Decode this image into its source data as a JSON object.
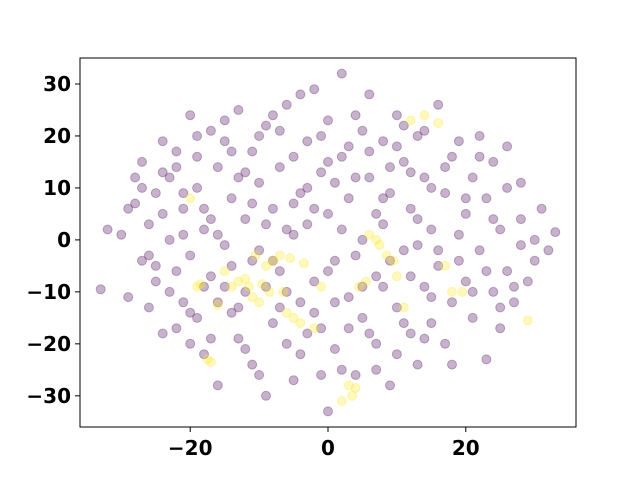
{
  "chart_data": {
    "type": "scatter",
    "title": "",
    "xlabel": "",
    "ylabel": "",
    "xlim": [
      -36,
      36
    ],
    "ylim": [
      -36,
      35
    ],
    "x_ticks": [
      -20,
      0,
      20
    ],
    "x_tick_labels": [
      "−20",
      "0",
      "20"
    ],
    "y_ticks": [
      -30,
      -20,
      -10,
      0,
      10,
      20,
      30
    ],
    "y_tick_labels": [
      "−30",
      "−20",
      "−10",
      "0",
      "10",
      "20",
      "30"
    ],
    "grid": false,
    "legend": "none",
    "marker_alpha": 0.3,
    "colors": {
      "class_0": "#440154",
      "class_1": "#fde725"
    },
    "series": [
      {
        "color_key": "class_0",
        "points": [
          [
            -33,
            -9.5
          ],
          [
            -32,
            2
          ],
          [
            -30,
            1
          ],
          [
            -29,
            -11
          ],
          [
            -28,
            7
          ],
          [
            -28,
            12
          ],
          [
            -27,
            -4
          ],
          [
            -27,
            15
          ],
          [
            -26,
            -13
          ],
          [
            -26,
            3
          ],
          [
            -25,
            -8
          ],
          [
            -25,
            9
          ],
          [
            -24,
            19
          ],
          [
            -24,
            -18
          ],
          [
            -23,
            0
          ],
          [
            -23,
            12
          ],
          [
            -22,
            -6
          ],
          [
            -22,
            17
          ],
          [
            -21,
            -12
          ],
          [
            -21,
            6
          ],
          [
            -20,
            -3
          ],
          [
            -20,
            24
          ],
          [
            -19,
            -15
          ],
          [
            -19,
            10
          ],
          [
            -18,
            -22
          ],
          [
            -18,
            2
          ],
          [
            -17,
            21
          ],
          [
            -17,
            -7
          ],
          [
            -16,
            14
          ],
          [
            -16,
            -28
          ],
          [
            -15,
            -1
          ],
          [
            -15,
            19
          ],
          [
            -14,
            -14
          ],
          [
            -14,
            8
          ],
          [
            -13,
            25
          ],
          [
            -13,
            -19
          ],
          [
            -12,
            4
          ],
          [
            -12,
            -10
          ],
          [
            -11,
            17
          ],
          [
            -11,
            -24
          ],
          [
            -10,
            11
          ],
          [
            -10,
            -2
          ],
          [
            -9,
            -30
          ],
          [
            -9,
            22
          ],
          [
            -8,
            6
          ],
          [
            -8,
            -16
          ],
          [
            -7,
            14
          ],
          [
            -7,
            -6
          ],
          [
            -6,
            26
          ],
          [
            -6,
            -20
          ],
          [
            -5,
            1
          ],
          [
            -5,
            -27
          ],
          [
            -4,
            9
          ],
          [
            -4,
            -12
          ],
          [
            -3,
            19
          ],
          [
            -3,
            3
          ],
          [
            -2,
            -8
          ],
          [
            -2,
            29
          ],
          [
            -1,
            -17
          ],
          [
            -1,
            13
          ],
          [
            0,
            -33
          ],
          [
            0,
            5
          ],
          [
            0,
            23
          ],
          [
            1,
            -4
          ],
          [
            1,
            -21
          ],
          [
            2,
            16
          ],
          [
            2,
            32
          ],
          [
            3,
            -11
          ],
          [
            3,
            8
          ],
          [
            4,
            -26
          ],
          [
            4,
            24
          ],
          [
            5,
            0
          ],
          [
            5,
            -15
          ],
          [
            6,
            12
          ],
          [
            6,
            28
          ],
          [
            7,
            -7
          ],
          [
            7,
            -20
          ],
          [
            8,
            19
          ],
          [
            8,
            3
          ],
          [
            9,
            -28
          ],
          [
            9,
            9
          ],
          [
            10,
            -13
          ],
          [
            10,
            24
          ],
          [
            11,
            -2
          ],
          [
            11,
            15
          ],
          [
            12,
            -18
          ],
          [
            12,
            6
          ],
          [
            13,
            -24
          ],
          [
            13,
            20
          ],
          [
            14,
            -9
          ],
          [
            14,
            12
          ],
          [
            15,
            2
          ],
          [
            15,
            -16
          ],
          [
            16,
            26
          ],
          [
            16,
            -5
          ],
          [
            17,
            9
          ],
          [
            17,
            -20
          ],
          [
            18,
            16
          ],
          [
            18,
            -12
          ],
          [
            19,
            1
          ],
          [
            19,
            19
          ],
          [
            20,
            -8
          ],
          [
            20,
            5
          ],
          [
            21,
            -15
          ],
          [
            21,
            12
          ],
          [
            22,
            -2
          ],
          [
            22,
            20
          ],
          [
            23,
            -23
          ],
          [
            23,
            8
          ],
          [
            24,
            -10
          ],
          [
            24,
            15
          ],
          [
            25,
            2
          ],
          [
            25,
            -17
          ],
          [
            26,
            -6
          ],
          [
            26,
            10
          ],
          [
            27,
            -12
          ],
          [
            28,
            4
          ],
          [
            28,
            11
          ],
          [
            29,
            -8
          ],
          [
            30,
            0
          ],
          [
            30,
            -4
          ],
          [
            31,
            6
          ],
          [
            32,
            -2
          ],
          [
            33,
            1.5
          ],
          [
            -29,
            6
          ],
          [
            -27,
            10
          ],
          [
            -26,
            -3
          ],
          [
            -24,
            5
          ],
          [
            -23,
            -10
          ],
          [
            -22,
            14
          ],
          [
            -21,
            1
          ],
          [
            -20,
            -14
          ],
          [
            -19,
            16
          ],
          [
            -18,
            -9
          ],
          [
            -17,
            4
          ],
          [
            -16,
            -12
          ],
          [
            -15,
            23
          ],
          [
            -14,
            -5
          ],
          [
            -13,
            12
          ],
          [
            -12,
            -21
          ],
          [
            -11,
            7
          ],
          [
            -10,
            20
          ],
          [
            -9,
            -9
          ],
          [
            -8,
            24
          ],
          [
            -7,
            -13
          ],
          [
            -6,
            2
          ],
          [
            -5,
            16
          ],
          [
            -4,
            -22
          ],
          [
            -3,
            10
          ],
          [
            -2,
            -14
          ],
          [
            -1,
            20
          ],
          [
            0,
            -6
          ],
          [
            1,
            11
          ],
          [
            2,
            -25
          ],
          [
            3,
            18
          ],
          [
            4,
            -3
          ],
          [
            5,
            21
          ],
          [
            6,
            -18
          ],
          [
            7,
            5
          ],
          [
            8,
            -9
          ],
          [
            9,
            14
          ],
          [
            10,
            -22
          ],
          [
            11,
            22
          ],
          [
            12,
            -7
          ],
          [
            13,
            4
          ],
          [
            14,
            -19
          ],
          [
            15,
            10
          ],
          [
            16,
            -2
          ],
          [
            17,
            14
          ],
          [
            18,
            -24
          ],
          [
            19,
            -4
          ],
          [
            20,
            8
          ],
          [
            21,
            -10
          ],
          [
            22,
            16
          ],
          [
            23,
            -6
          ],
          [
            24,
            4
          ],
          [
            25,
            -13
          ],
          [
            26,
            18
          ],
          [
            27,
            -9
          ],
          [
            28,
            -1
          ],
          [
            -25,
            -5
          ],
          [
            -24,
            13
          ],
          [
            -22,
            -17
          ],
          [
            -21,
            9
          ],
          [
            -20,
            -20
          ],
          [
            -19,
            20
          ],
          [
            -18,
            6
          ],
          [
            -17,
            -19
          ],
          [
            -16,
            1
          ],
          [
            -15,
            -9
          ],
          [
            -14,
            17
          ],
          [
            -13,
            -13
          ],
          [
            -12,
            13
          ],
          [
            -11,
            -4
          ],
          [
            -10,
            -26
          ],
          [
            -9,
            3
          ],
          [
            -8,
            -4
          ],
          [
            -7,
            21
          ],
          [
            -6,
            -10
          ],
          [
            -5,
            7
          ],
          [
            -4,
            28
          ],
          [
            -3,
            -18
          ],
          [
            -2,
            6
          ],
          [
            -1,
            -26
          ],
          [
            0,
            15
          ],
          [
            1,
            -12
          ],
          [
            2,
            2
          ],
          [
            3,
            -17
          ],
          [
            4,
            12
          ],
          [
            5,
            -9
          ],
          [
            6,
            17
          ],
          [
            7,
            -25
          ],
          [
            8,
            8
          ],
          [
            9,
            -4
          ],
          [
            10,
            18
          ],
          [
            11,
            -16
          ],
          [
            12,
            13
          ],
          [
            13,
            -1
          ],
          [
            14,
            21
          ],
          [
            15,
            -11
          ]
        ]
      },
      {
        "color_key": "class_1",
        "points": [
          [
            -20,
            8
          ],
          [
            -19,
            -9
          ],
          [
            -18.5,
            -8.5
          ],
          [
            -17.5,
            -23
          ],
          [
            -17,
            -23.5
          ],
          [
            -16,
            -12.5
          ],
          [
            -15,
            -6
          ],
          [
            -14,
            -9
          ],
          [
            -13,
            -8
          ],
          [
            -12,
            -7.5
          ],
          [
            -11.5,
            -9
          ],
          [
            -11,
            -11
          ],
          [
            -10.5,
            -3
          ],
          [
            -10,
            -12
          ],
          [
            -9.5,
            -8.5
          ],
          [
            -9,
            -5
          ],
          [
            -8.5,
            -10
          ],
          [
            -8,
            -4
          ],
          [
            -7,
            -3
          ],
          [
            -6.5,
            -10
          ],
          [
            -6,
            -14
          ],
          [
            -5.5,
            -3.5
          ],
          [
            -5,
            -15
          ],
          [
            -4,
            -16
          ],
          [
            -3.5,
            -4.5
          ],
          [
            -2,
            -17
          ],
          [
            -1,
            -9
          ],
          [
            2,
            -31
          ],
          [
            3,
            -28
          ],
          [
            3.5,
            -30
          ],
          [
            4,
            -28.5
          ],
          [
            4.5,
            -9
          ],
          [
            5.5,
            -8
          ],
          [
            6,
            1
          ],
          [
            7,
            0
          ],
          [
            7.5,
            -1
          ],
          [
            8.5,
            -3
          ],
          [
            9.5,
            -4
          ],
          [
            10,
            -7
          ],
          [
            11,
            -13
          ],
          [
            12,
            23
          ],
          [
            14,
            24
          ],
          [
            16,
            22.5
          ],
          [
            17,
            -5
          ],
          [
            18,
            -10
          ],
          [
            19.5,
            -10
          ],
          [
            29,
            -15.5
          ]
        ]
      }
    ]
  }
}
